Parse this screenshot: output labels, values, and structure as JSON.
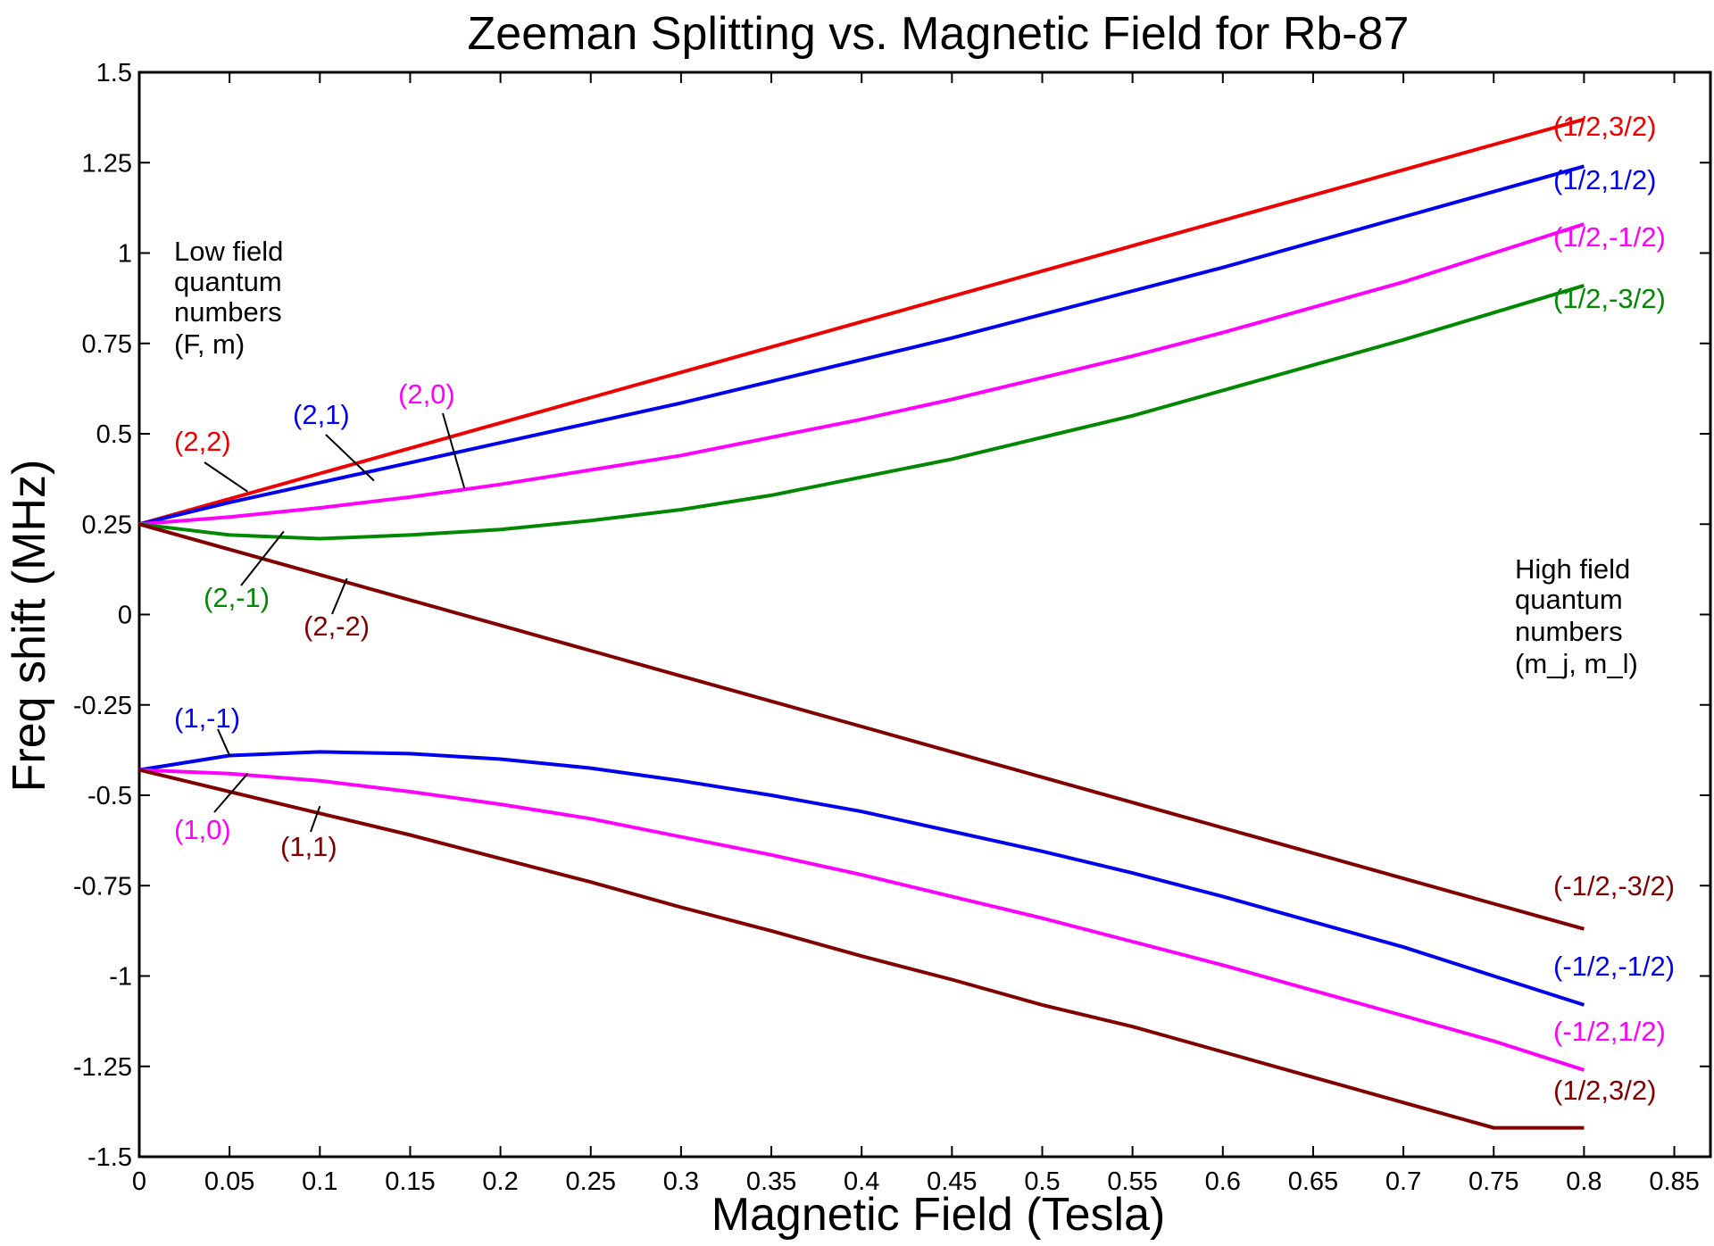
{
  "chart_data": {
    "type": "line",
    "title": "Zeeman Splitting vs. Magnetic Field for Rb-87",
    "xlabel": "Magnetic Field (Tesla)",
    "ylabel": "Freq shift (MHz)",
    "xlim": [
      0,
      0.87
    ],
    "ylim": [
      -1.5,
      1.5
    ],
    "xticks": [
      "0",
      "0.05",
      "0.1",
      "0.15",
      "0.2",
      "0.25",
      "0.3",
      "0.35",
      "0.4",
      "0.45",
      "0.5",
      "0.55",
      "0.6",
      "0.65",
      "0.7",
      "0.75",
      "0.8",
      "0.85"
    ],
    "yticks": [
      "1.5",
      "1.25",
      "1",
      "0.75",
      "0.5",
      "0.25",
      "0",
      "-0.25",
      "-0.5",
      "-0.75",
      "-1",
      "-1.25",
      "-1.5"
    ],
    "grid": false,
    "x": [
      0,
      0.05,
      0.1,
      0.15,
      0.2,
      0.25,
      0.3,
      0.35,
      0.4,
      0.45,
      0.5,
      0.55,
      0.6,
      0.65,
      0.7,
      0.75,
      0.8
    ],
    "series": [
      {
        "low_label": "(2,2)",
        "high_label": "(1/2,3/2)",
        "color": "#ee0000",
        "values": [
          0.25,
          0.32,
          0.39,
          0.46,
          0.53,
          0.6,
          0.67,
          0.74,
          0.81,
          0.88,
          0.95,
          1.02,
          1.09,
          1.16,
          1.23,
          1.3,
          1.37
        ]
      },
      {
        "low_label": "(2,1)",
        "high_label": "(1/2,1/2)",
        "color": "#0000ee",
        "values": [
          0.25,
          0.31,
          0.365,
          0.42,
          0.475,
          0.53,
          0.585,
          0.645,
          0.705,
          0.765,
          0.83,
          0.895,
          0.96,
          1.03,
          1.1,
          1.17,
          1.24
        ]
      },
      {
        "low_label": "(2,0)",
        "high_label": "(1/2,-1/2)",
        "color": "#ff00ff",
        "values": [
          0.25,
          0.27,
          0.295,
          0.325,
          0.36,
          0.4,
          0.44,
          0.49,
          0.54,
          0.595,
          0.655,
          0.715,
          0.78,
          0.85,
          0.92,
          1.0,
          1.08
        ]
      },
      {
        "low_label": "(2,-1)",
        "high_label": "(1/2,-3/2)",
        "color": "#008800",
        "values": [
          0.25,
          0.22,
          0.21,
          0.22,
          0.235,
          0.26,
          0.29,
          0.33,
          0.38,
          0.43,
          0.49,
          0.55,
          0.62,
          0.69,
          0.76,
          0.835,
          0.91
        ]
      },
      {
        "low_label": "(2,-2)",
        "high_label": "(-1/2,-3/2)",
        "color": "#800000",
        "values": [
          0.25,
          0.18,
          0.11,
          0.04,
          -0.03,
          -0.1,
          -0.17,
          -0.24,
          -0.31,
          -0.38,
          -0.45,
          -0.52,
          -0.59,
          -0.66,
          -0.73,
          -0.8,
          -0.87
        ]
      },
      {
        "low_label": "(1,-1)",
        "high_label": "(-1/2,-1/2)",
        "color": "#0000ee",
        "values": [
          -0.43,
          -0.39,
          -0.38,
          -0.385,
          -0.4,
          -0.425,
          -0.46,
          -0.5,
          -0.545,
          -0.6,
          -0.655,
          -0.715,
          -0.78,
          -0.85,
          -0.92,
          -1.0,
          -1.08
        ]
      },
      {
        "low_label": "(1,0)",
        "high_label": "(-1/2,1/2)",
        "color": "#ff00ff",
        "values": [
          -0.43,
          -0.44,
          -0.46,
          -0.49,
          -0.525,
          -0.565,
          -0.615,
          -0.665,
          -0.72,
          -0.78,
          -0.84,
          -0.905,
          -0.97,
          -1.04,
          -1.11,
          -1.18,
          -1.26
        ]
      },
      {
        "low_label": "(1,1)",
        "high_label": "(1/2,3/2)",
        "color": "#800000",
        "values": [
          -0.43,
          -0.49,
          -0.55,
          -0.61,
          -0.675,
          -0.74,
          -0.81,
          -0.875,
          -0.945,
          -1.01,
          -1.08,
          -1.14,
          -1.21,
          -1.28,
          -1.35,
          -1.42,
          -1.42
        ]
      }
    ],
    "annotations": {
      "low_field": [
        "Low field",
        "quantum",
        "numbers",
        "(F, m)"
      ],
      "high_field": [
        "High field",
        "quantum",
        "numbers",
        "(m_j, m_l)"
      ]
    }
  }
}
